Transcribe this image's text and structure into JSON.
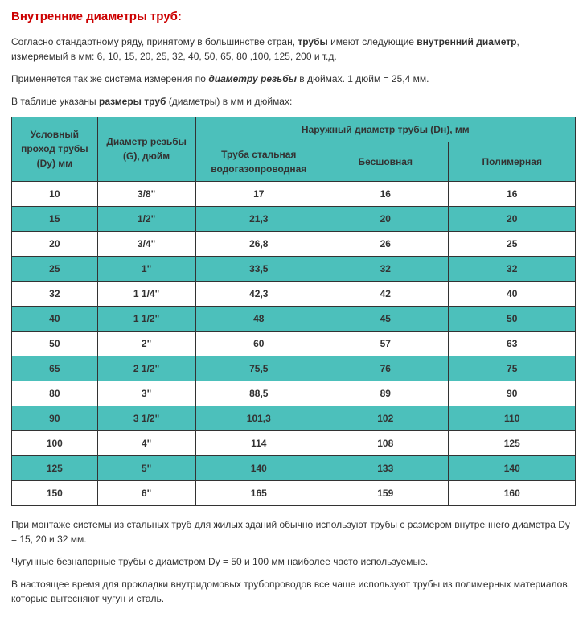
{
  "title_text": "Внутренние диаметры труб:",
  "title_color": "#cc0000",
  "p1_pre": "Согласно стандартному ряду, принятому в большинстве стран, ",
  "p1_s1": "трубы",
  "p1_mid": " имеют следующие ",
  "p1_s2": "внутренний диаметр",
  "p1_post": ", измеряемый в мм: 6, 10, 15, 20, 25, 32, 40, 50, 65, 80 ,100, 125, 200 и т.д.",
  "p2_pre": "Применяется так же система измерения по ",
  "p2_s1": "диаметру резьбы",
  "p2_post": " в дюймах. 1 дюйм = 25,4 мм.",
  "p3_pre": "В таблице указаны ",
  "p3_s1": "размеры труб",
  "p3_post": " (диаметры) в мм и дюймах:",
  "table": {
    "header_bg": "#4cc0bb",
    "alt_bg": "#4cc0bb",
    "row_bg": "#ffffff",
    "border_color": "#333333",
    "h_dy": "Условный проход трубы (Dy) мм",
    "h_thread": "Диаметр резьбы (G), дюйм",
    "h_outer": "Наружный диаметр трубы (Dн), мм",
    "h_steel": "Труба стальная водогазопроводная",
    "h_seamless": "Бесшовная",
    "h_polymer": "Полимерная",
    "rows": [
      {
        "dy": "10",
        "thread": "3/8\"",
        "steel": "17",
        "seamless": "16",
        "polymer": "16"
      },
      {
        "dy": "15",
        "thread": "1/2\"",
        "steel": "21,3",
        "seamless": "20",
        "polymer": "20"
      },
      {
        "dy": "20",
        "thread": "3/4\"",
        "steel": "26,8",
        "seamless": "26",
        "polymer": "25"
      },
      {
        "dy": "25",
        "thread": "1\"",
        "steel": "33,5",
        "seamless": "32",
        "polymer": "32"
      },
      {
        "dy": "32",
        "thread": "1 1/4\"",
        "steel": "42,3",
        "seamless": "42",
        "polymer": "40"
      },
      {
        "dy": "40",
        "thread": "1 1/2\"",
        "steel": "48",
        "seamless": "45",
        "polymer": "50"
      },
      {
        "dy": "50",
        "thread": "2\"",
        "steel": "60",
        "seamless": "57",
        "polymer": "63"
      },
      {
        "dy": "65",
        "thread": "2 1/2\"",
        "steel": "75,5",
        "seamless": "76",
        "polymer": "75"
      },
      {
        "dy": "80",
        "thread": "3\"",
        "steel": "88,5",
        "seamless": "89",
        "polymer": "90"
      },
      {
        "dy": "90",
        "thread": "3 1/2\"",
        "steel": "101,3",
        "seamless": "102",
        "polymer": "110"
      },
      {
        "dy": "100",
        "thread": "4\"",
        "steel": "114",
        "seamless": "108",
        "polymer": "125"
      },
      {
        "dy": "125",
        "thread": "5\"",
        "steel": "140",
        "seamless": "133",
        "polymer": "140"
      },
      {
        "dy": "150",
        "thread": "6\"",
        "steel": "165",
        "seamless": "159",
        "polymer": "160"
      }
    ]
  },
  "p4": "При монтаже системы из стальных труб для жилых зданий обычно используют трубы с размером внутреннего диаметра Dу = 15, 20 и 32 мм.",
  "p5": "Чугунные безнапорные трубы с диаметром Dу = 50 и 100 мм наиболее часто используемые.",
  "p6": "В настоящее время для прокладки внутридомовых трубопроводов все чаше используют трубы из полимерных материалов, которые вытесняют чугун и сталь."
}
